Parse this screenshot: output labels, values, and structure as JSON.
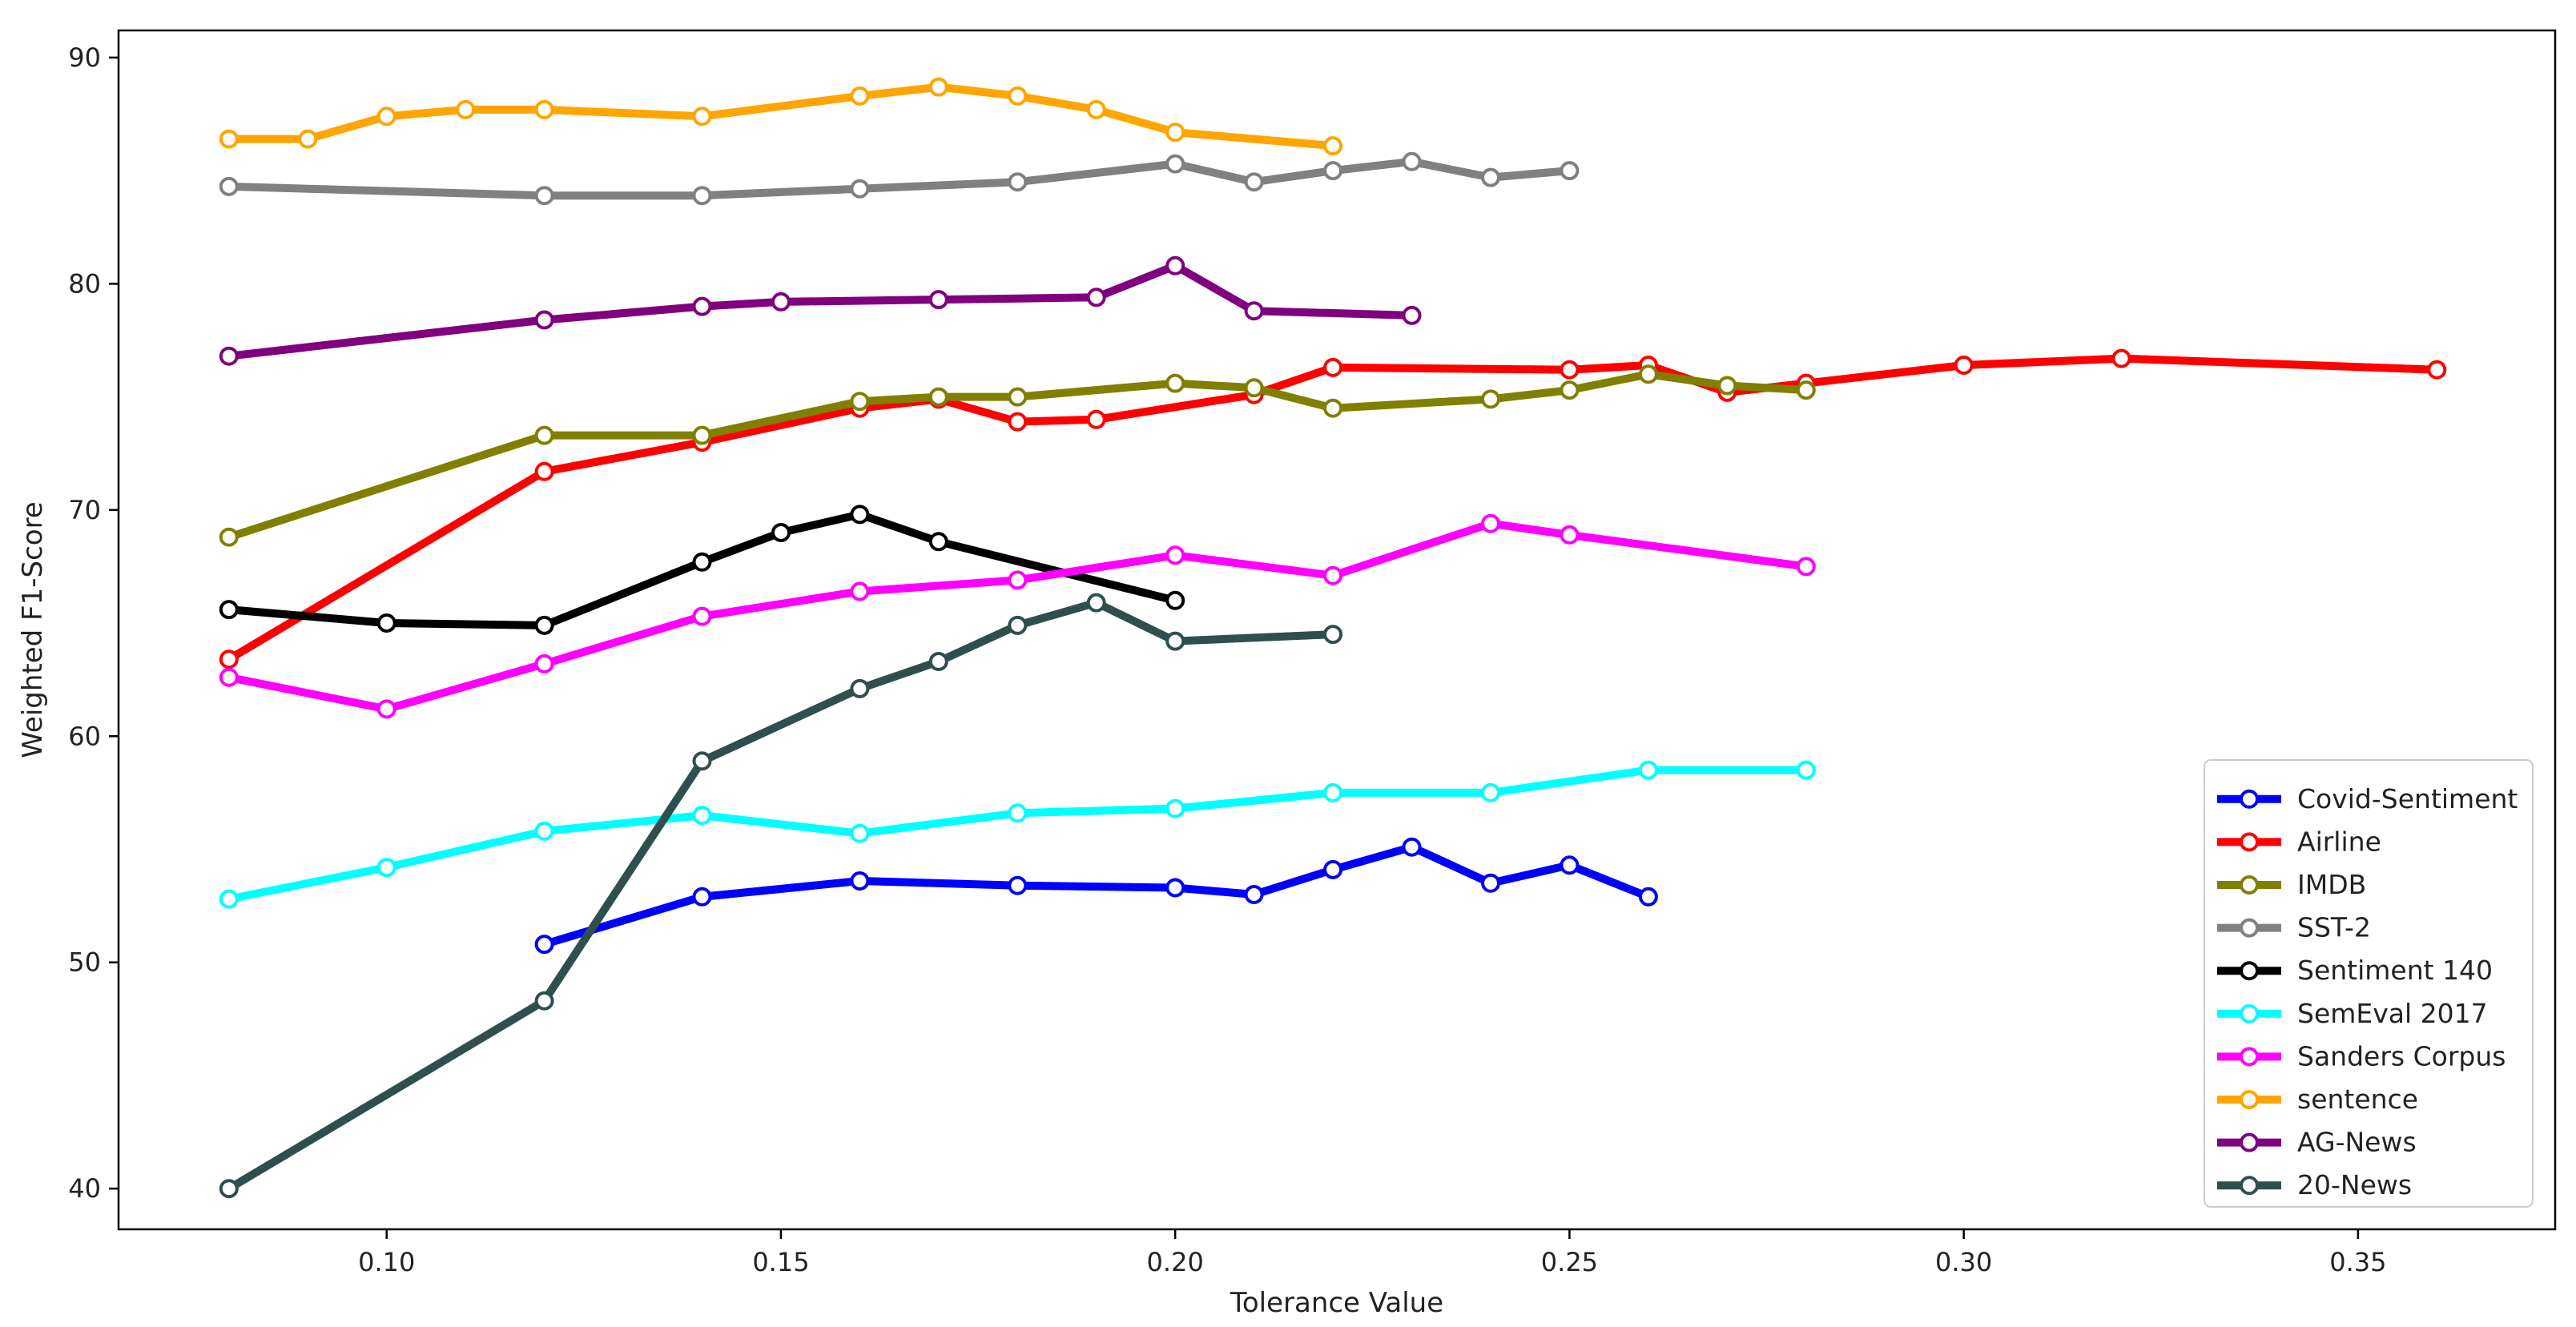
{
  "chart_data": {
    "type": "line",
    "title": "",
    "xlabel": "Tolerance Value",
    "ylabel": "Weighted F1-Score",
    "xlim": [
      0.066,
      0.375
    ],
    "ylim": [
      38.2,
      91.2
    ],
    "xticks": [
      0.1,
      0.15,
      0.2,
      0.25,
      0.3,
      0.35
    ],
    "xtick_labels": [
      "0.10",
      "0.15",
      "0.20",
      "0.25",
      "0.30",
      "0.35"
    ],
    "yticks": [
      40,
      50,
      60,
      70,
      80,
      90
    ],
    "ytick_labels": [
      "40",
      "50",
      "60",
      "70",
      "80",
      "90"
    ],
    "grid": false,
    "legend_position": "lower-right",
    "marker": "circle-white-fill",
    "series": [
      {
        "name": "Covid-Sentiment",
        "color": "#0000ff",
        "x": [
          0.12,
          0.14,
          0.16,
          0.18,
          0.2,
          0.21,
          0.22,
          0.23,
          0.24,
          0.25,
          0.26
        ],
        "y": [
          50.8,
          52.9,
          53.6,
          53.4,
          53.3,
          53.0,
          54.1,
          55.1,
          53.5,
          54.3,
          52.9
        ]
      },
      {
        "name": "Airline",
        "color": "#ff0000",
        "x": [
          0.08,
          0.12,
          0.14,
          0.16,
          0.17,
          0.18,
          0.19,
          0.21,
          0.22,
          0.25,
          0.26,
          0.27,
          0.28,
          0.3,
          0.32,
          0.36
        ],
        "y": [
          63.4,
          71.7,
          73.0,
          74.5,
          74.9,
          73.9,
          74.0,
          75.1,
          76.3,
          76.2,
          76.4,
          75.2,
          75.6,
          76.4,
          76.7,
          76.2
        ]
      },
      {
        "name": "IMDB",
        "color": "#808000",
        "x": [
          0.08,
          0.12,
          0.14,
          0.16,
          0.17,
          0.18,
          0.2,
          0.21,
          0.22,
          0.24,
          0.25,
          0.26,
          0.27,
          0.28
        ],
        "y": [
          68.8,
          73.3,
          73.3,
          74.8,
          75.0,
          75.0,
          75.6,
          75.4,
          74.5,
          74.9,
          75.3,
          76.0,
          75.5,
          75.3
        ]
      },
      {
        "name": "SST-2",
        "color": "#808080",
        "x": [
          0.08,
          0.12,
          0.14,
          0.16,
          0.18,
          0.2,
          0.21,
          0.22,
          0.23,
          0.24,
          0.25
        ],
        "y": [
          84.3,
          83.9,
          83.9,
          84.2,
          84.5,
          85.3,
          84.5,
          85.0,
          85.4,
          84.7,
          85.0
        ]
      },
      {
        "name": "Sentiment 140",
        "color": "#000000",
        "x": [
          0.08,
          0.1,
          0.12,
          0.14,
          0.15,
          0.16,
          0.17,
          0.2
        ],
        "y": [
          65.6,
          65.0,
          64.9,
          67.7,
          69.0,
          69.8,
          68.6,
          66.0
        ]
      },
      {
        "name": "SemEval 2017",
        "color": "#00ffff",
        "x": [
          0.08,
          0.1,
          0.12,
          0.14,
          0.16,
          0.18,
          0.2,
          0.22,
          0.24,
          0.26,
          0.28
        ],
        "y": [
          52.8,
          54.2,
          55.8,
          56.5,
          55.7,
          56.6,
          56.8,
          57.5,
          57.5,
          58.5,
          58.5
        ]
      },
      {
        "name": "Sanders Corpus",
        "color": "#ff00ff",
        "x": [
          0.08,
          0.1,
          0.12,
          0.14,
          0.16,
          0.18,
          0.2,
          0.22,
          0.24,
          0.25,
          0.28
        ],
        "y": [
          62.6,
          61.2,
          63.2,
          65.3,
          66.4,
          66.9,
          68.0,
          67.1,
          69.4,
          68.9,
          67.5
        ]
      },
      {
        "name": "sentence",
        "color": "#ffa500",
        "x": [
          0.08,
          0.09,
          0.1,
          0.11,
          0.12,
          0.14,
          0.16,
          0.17,
          0.18,
          0.19,
          0.2,
          0.22
        ],
        "y": [
          86.4,
          86.4,
          87.4,
          87.7,
          87.7,
          87.4,
          88.3,
          88.7,
          88.3,
          87.7,
          86.7,
          86.1
        ]
      },
      {
        "name": "AG-News",
        "color": "#800080",
        "x": [
          0.08,
          0.12,
          0.14,
          0.15,
          0.17,
          0.19,
          0.2,
          0.21,
          0.23
        ],
        "y": [
          76.8,
          78.4,
          79.0,
          79.2,
          79.3,
          79.4,
          80.8,
          78.8,
          78.6
        ]
      },
      {
        "name": "20-News",
        "color": "#2f4f4f",
        "x": [
          0.08,
          0.12,
          0.14,
          0.16,
          0.17,
          0.18,
          0.19,
          0.2,
          0.22
        ],
        "y": [
          40.0,
          48.3,
          58.9,
          62.1,
          63.3,
          64.9,
          65.9,
          64.2,
          64.5
        ]
      }
    ]
  }
}
